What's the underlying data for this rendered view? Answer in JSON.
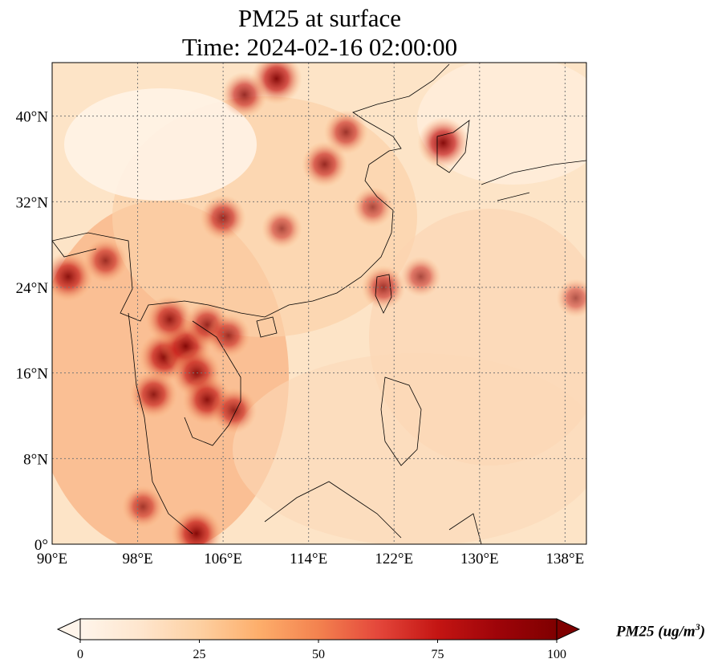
{
  "title": {
    "line1": "PM25 at surface",
    "line2": "Time: 2024-02-16 02:00:00"
  },
  "map": {
    "extent": {
      "lon_min": 90,
      "lon_max": 140,
      "lat_min": 0,
      "lat_max": 45
    },
    "x_ticks": [
      {
        "lon": 90,
        "label": "90°E"
      },
      {
        "lon": 98,
        "label": "98°E"
      },
      {
        "lon": 106,
        "label": "106°E"
      },
      {
        "lon": 114,
        "label": "114°E"
      },
      {
        "lon": 122,
        "label": "122°E"
      },
      {
        "lon": 130,
        "label": "130°E"
      },
      {
        "lon": 138,
        "label": "138°E"
      }
    ],
    "y_ticks": [
      {
        "lat": 0,
        "label": "0°"
      },
      {
        "lat": 8,
        "label": "8°N"
      },
      {
        "lat": 16,
        "label": "16°N"
      },
      {
        "lat": 24,
        "label": "24°N"
      },
      {
        "lat": 32,
        "label": "32°N"
      },
      {
        "lat": 40,
        "label": "40°N"
      }
    ],
    "gridlines": true,
    "hotspots": [
      {
        "lon": 100.5,
        "lat": 17.5,
        "value": 100
      },
      {
        "lon": 102.5,
        "lat": 18.5,
        "value": 100
      },
      {
        "lon": 103.5,
        "lat": 16.0,
        "value": 95
      },
      {
        "lon": 104.5,
        "lat": 13.5,
        "value": 95
      },
      {
        "lon": 107.0,
        "lat": 12.5,
        "value": 85
      },
      {
        "lon": 99.5,
        "lat": 14.0,
        "value": 90
      },
      {
        "lon": 101.0,
        "lat": 21.0,
        "value": 90
      },
      {
        "lon": 104.5,
        "lat": 20.5,
        "value": 85
      },
      {
        "lon": 106.5,
        "lat": 19.5,
        "value": 80
      },
      {
        "lon": 111.0,
        "lat": 43.5,
        "value": 100
      },
      {
        "lon": 108.0,
        "lat": 42.0,
        "value": 85
      },
      {
        "lon": 126.6,
        "lat": 37.5,
        "value": 100
      },
      {
        "lon": 115.5,
        "lat": 35.5,
        "value": 85
      },
      {
        "lon": 117.5,
        "lat": 38.5,
        "value": 80
      },
      {
        "lon": 106.0,
        "lat": 30.5,
        "value": 85
      },
      {
        "lon": 111.5,
        "lat": 29.5,
        "value": 70
      },
      {
        "lon": 120.0,
        "lat": 31.5,
        "value": 70
      },
      {
        "lon": 91.5,
        "lat": 25.0,
        "value": 95
      },
      {
        "lon": 95.0,
        "lat": 26.5,
        "value": 80
      },
      {
        "lon": 121.0,
        "lat": 24.0,
        "value": 80
      },
      {
        "lon": 124.5,
        "lat": 25.0,
        "value": 70
      },
      {
        "lon": 139.0,
        "lat": 23.0,
        "value": 65
      },
      {
        "lon": 103.5,
        "lat": 1.0,
        "value": 100
      },
      {
        "lon": 98.5,
        "lat": 3.5,
        "value": 75
      }
    ]
  },
  "colorbar": {
    "title": "PM25 (ug/m",
    "title_sup": "3",
    "title_end": ")",
    "min": 0,
    "max": 100,
    "ticks": [
      {
        "value": 0,
        "label": "0"
      },
      {
        "value": 25,
        "label": "25"
      },
      {
        "value": 50,
        "label": "50"
      },
      {
        "value": 75,
        "label": "75"
      },
      {
        "value": 100,
        "label": "100"
      }
    ],
    "colors": [
      "#fff5eb",
      "#fee6ce",
      "#fdd0a2",
      "#fdae6b",
      "#f3824f",
      "#e4473b",
      "#c41513",
      "#9e0409",
      "#7f0000"
    ]
  }
}
